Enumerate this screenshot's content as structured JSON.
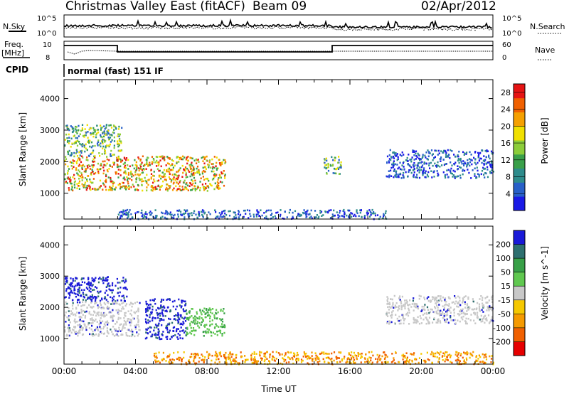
{
  "header": {
    "title": "Christmas Valley East (fitACF)",
    "beam": "Beam 09",
    "date": "02/Apr/2012"
  },
  "params": {
    "nsky_label": "N.Sky",
    "nsky_ticks": [
      "10^5",
      "10^0"
    ],
    "nsearch_label": "N.Search",
    "nsearch_ticks": [
      "10^5",
      "10^0"
    ],
    "freq_label": "Freq.",
    "freq_unit": "[MHz]",
    "freq_ticks": [
      "10",
      "8"
    ],
    "nave_label": "Nave",
    "nave_ticks": [
      "60",
      "0"
    ],
    "cpid_label": "CPID",
    "cpid_value": "normal (fast) 151 IF"
  },
  "chart_data": [
    {
      "type": "heatmap",
      "title": "",
      "ylabel": "Slant Range [km]",
      "ylim": [
        180,
        4600
      ],
      "yticks": [
        1000,
        2000,
        3000,
        4000
      ],
      "xlabel": "",
      "xlim_hours": [
        0,
        24
      ],
      "colorbar": {
        "label": "Power [dB]",
        "ticks": [
          "4",
          "8",
          "12",
          "16",
          "20",
          "24",
          "28"
        ],
        "range": [
          0,
          30
        ],
        "colors": [
          "#1a1ae6",
          "#2860c8",
          "#2e8c8c",
          "#3aa04a",
          "#8ccd3a",
          "#f0e000",
          "#f5a000",
          "#f06000",
          "#e61414"
        ]
      },
      "features": [
        {
          "name": "dense echo band",
          "t_start": 0.0,
          "t_end": 9.0,
          "range_km": [
            1100,
            2200
          ],
          "value": "16-28 dB"
        },
        {
          "name": "upper echoes",
          "t_start": 0.0,
          "t_end": 3.2,
          "range_km": [
            2200,
            3200
          ],
          "value": "8-20 dB"
        },
        {
          "name": "near-range ground scatter",
          "t_start": 3.0,
          "t_end": 18.0,
          "range_km": [
            200,
            500
          ],
          "value": "4-8 dB"
        },
        {
          "name": "afternoon echoes",
          "t_start": 14.5,
          "t_end": 15.5,
          "range_km": [
            1600,
            2200
          ],
          "value": "8-20 dB"
        },
        {
          "name": "evening band",
          "t_start": 18.0,
          "t_end": 24.0,
          "range_km": [
            1500,
            2400
          ],
          "value": "4-12 dB"
        }
      ]
    },
    {
      "type": "heatmap",
      "title": "",
      "ylabel": "Slant Range [km]",
      "ylim": [
        180,
        4600
      ],
      "yticks": [
        1000,
        2000,
        3000,
        4000
      ],
      "xlabel": "Time UT",
      "xticks": [
        "00:00",
        "04:00",
        "08:00",
        "12:00",
        "16:00",
        "20:00",
        "00:00"
      ],
      "xlim_hours": [
        0,
        24
      ],
      "colorbar": {
        "label": "Velocity [m s^-1]",
        "ticks": [
          "200",
          "100",
          "50",
          "15",
          "-15",
          "-50",
          "-100",
          "-200"
        ],
        "range": [
          -250,
          250
        ],
        "colors": [
          "#e60000",
          "#f06000",
          "#f59a00",
          "#f5c800",
          "#c8c8c8",
          "#60c850",
          "#38a048",
          "#2e7070",
          "#1a1ad8"
        ]
      },
      "features": [
        {
          "name": "positive-velocity echoes",
          "t_start": 0.0,
          "t_end": 3.5,
          "range_km": [
            2200,
            3000
          ],
          "value": "100-200"
        },
        {
          "name": "low-velocity band",
          "t_start": 0.0,
          "t_end": 4.2,
          "range_km": [
            1100,
            2200
          ],
          "value": "-15 to 15"
        },
        {
          "name": "strong positive patch",
          "t_start": 4.5,
          "t_end": 6.8,
          "range_km": [
            1000,
            2300
          ],
          "value": "200"
        },
        {
          "name": "moderate positive patch",
          "t_start": 6.8,
          "t_end": 9.0,
          "range_km": [
            1100,
            2000
          ],
          "value": "50-100"
        },
        {
          "name": "near-range negative velocities",
          "t_start": 5.0,
          "t_end": 24.0,
          "range_km": [
            200,
            600
          ],
          "value": "-50 to -100"
        },
        {
          "name": "evening low-velocity band",
          "t_start": 18.0,
          "t_end": 24.0,
          "range_km": [
            1500,
            2400
          ],
          "value": "-15 to 15"
        }
      ]
    }
  ]
}
